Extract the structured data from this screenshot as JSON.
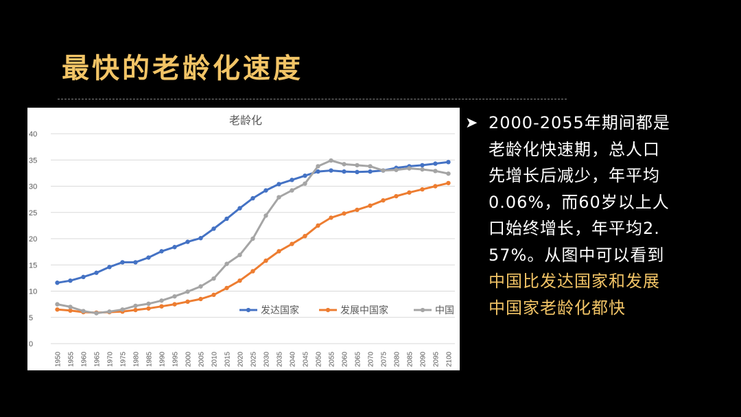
{
  "slide": {
    "title": "最快的老龄化速度",
    "bullet_icon": "arrow-bullet-icon",
    "text_plain": "2000-2055年期间都是老龄化快速期，总人口先增长后减少，年平均0.06%，而60岁以上人口始终增长，年平均2.57%。从图中可以看到",
    "text_highlight": "中国比发达国家和发展中国家老龄化都快",
    "colors": {
      "background": "#000000",
      "accent": "#f2c466",
      "text": "#ffffff"
    }
  },
  "chart_data": {
    "type": "line",
    "title": "老龄化",
    "xlabel": "",
    "ylabel": "",
    "ylim": [
      0,
      40
    ],
    "yticks": [
      "0",
      "5",
      "10",
      "15",
      "20",
      "25",
      "30",
      "35",
      "40"
    ],
    "grid": true,
    "legend_position": "right",
    "categories": [
      "1950",
      "1955",
      "1960",
      "1965",
      "1970",
      "1975",
      "1980",
      "1985",
      "1990",
      "1995",
      "2000",
      "2005",
      "2010",
      "2015",
      "2020",
      "2025",
      "2030",
      "2035",
      "2040",
      "2045",
      "2050",
      "2055",
      "2060",
      "2065",
      "2070",
      "2075",
      "2080",
      "2085",
      "2090",
      "2095",
      "2100"
    ],
    "series": [
      {
        "name": "发达国家",
        "color": "#4472c4",
        "values": [
          11.6,
          12.0,
          12.7,
          13.5,
          14.6,
          15.5,
          15.5,
          16.4,
          17.6,
          18.4,
          19.4,
          20.1,
          21.9,
          23.8,
          25.8,
          27.7,
          29.2,
          30.4,
          31.2,
          32.0,
          32.8,
          33.0,
          32.8,
          32.7,
          32.8,
          33.0,
          33.5,
          33.8,
          34.0,
          34.3,
          34.6
        ]
      },
      {
        "name": "发展中国家",
        "color": "#ed7d31",
        "values": [
          6.5,
          6.3,
          6.0,
          5.9,
          6.0,
          6.1,
          6.4,
          6.7,
          7.1,
          7.5,
          8.0,
          8.5,
          9.3,
          10.6,
          12.0,
          13.8,
          15.8,
          17.6,
          19.0,
          20.5,
          22.5,
          24.0,
          24.8,
          25.5,
          26.3,
          27.3,
          28.1,
          28.8,
          29.4,
          30.0,
          30.6
        ]
      },
      {
        "name": "中国",
        "color": "#a5a5a5",
        "values": [
          7.5,
          7.0,
          6.2,
          5.8,
          6.1,
          6.5,
          7.2,
          7.6,
          8.2,
          9.0,
          9.9,
          10.9,
          12.4,
          15.2,
          16.9,
          20.0,
          24.4,
          27.9,
          29.2,
          30.5,
          33.8,
          34.9,
          34.2,
          34.0,
          33.8,
          33.0,
          33.1,
          33.4,
          33.2,
          32.9,
          32.4
        ]
      }
    ]
  }
}
